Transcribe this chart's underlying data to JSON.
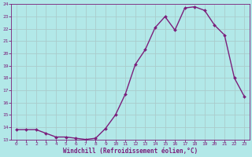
{
  "x": [
    0,
    1,
    2,
    3,
    4,
    5,
    6,
    7,
    8,
    9,
    10,
    11,
    12,
    13,
    14,
    15,
    16,
    17,
    18,
    19,
    20,
    21,
    22,
    23
  ],
  "y": [
    13.8,
    13.8,
    13.8,
    13.5,
    13.2,
    13.2,
    13.1,
    13.0,
    13.1,
    13.9,
    15.0,
    16.7,
    19.1,
    20.3,
    22.1,
    23.0,
    21.9,
    23.7,
    23.8,
    23.5,
    22.3,
    21.5,
    18.0,
    16.5
  ],
  "line_color": "#7B1F7B",
  "marker": "D",
  "marker_size": 2.0,
  "bg_color": "#b2e8e8",
  "grid_color": "#aacccc",
  "xlabel": "Windchill (Refroidissement éolien,°C)",
  "xlabel_color": "#7B1F7B",
  "tick_color": "#7B1F7B",
  "ylim": [
    13,
    24
  ],
  "xlim": [
    -0.5,
    23.5
  ],
  "yticks": [
    13,
    14,
    15,
    16,
    17,
    18,
    19,
    20,
    21,
    22,
    23,
    24
  ],
  "xticks": [
    0,
    1,
    2,
    3,
    4,
    5,
    6,
    7,
    8,
    9,
    10,
    11,
    12,
    13,
    14,
    15,
    16,
    17,
    18,
    19,
    20,
    21,
    22,
    23
  ]
}
